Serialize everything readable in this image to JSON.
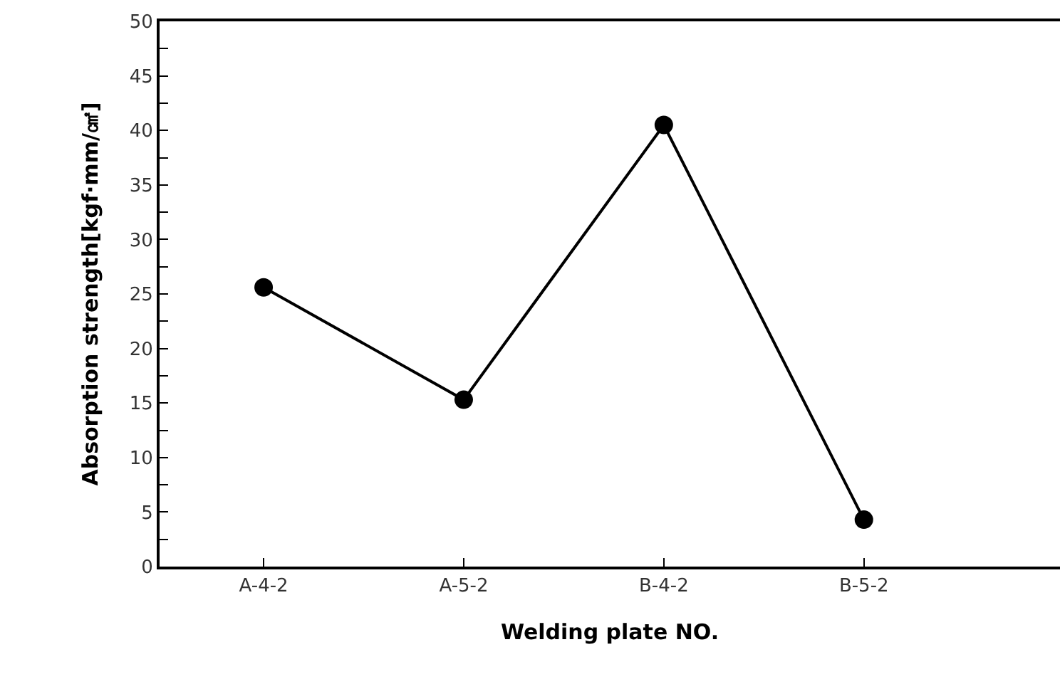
{
  "chart_data": {
    "type": "line",
    "xlabel": "Welding plate NO.",
    "ylabel": "Absorption strength[kgf·mm/㎠]",
    "categories": [
      "A-4-2",
      "A-5-2",
      "B-4-2",
      "B-5-2"
    ],
    "series": [
      {
        "color": "#000000",
        "values": [
          25.6,
          15.3,
          40.5,
          4.3
        ]
      }
    ],
    "ylim": [
      0,
      50
    ],
    "yticks": [
      0,
      5,
      10,
      15,
      20,
      25,
      30,
      35,
      40,
      45,
      50
    ],
    "marker": "circle",
    "line_style": "solid"
  }
}
